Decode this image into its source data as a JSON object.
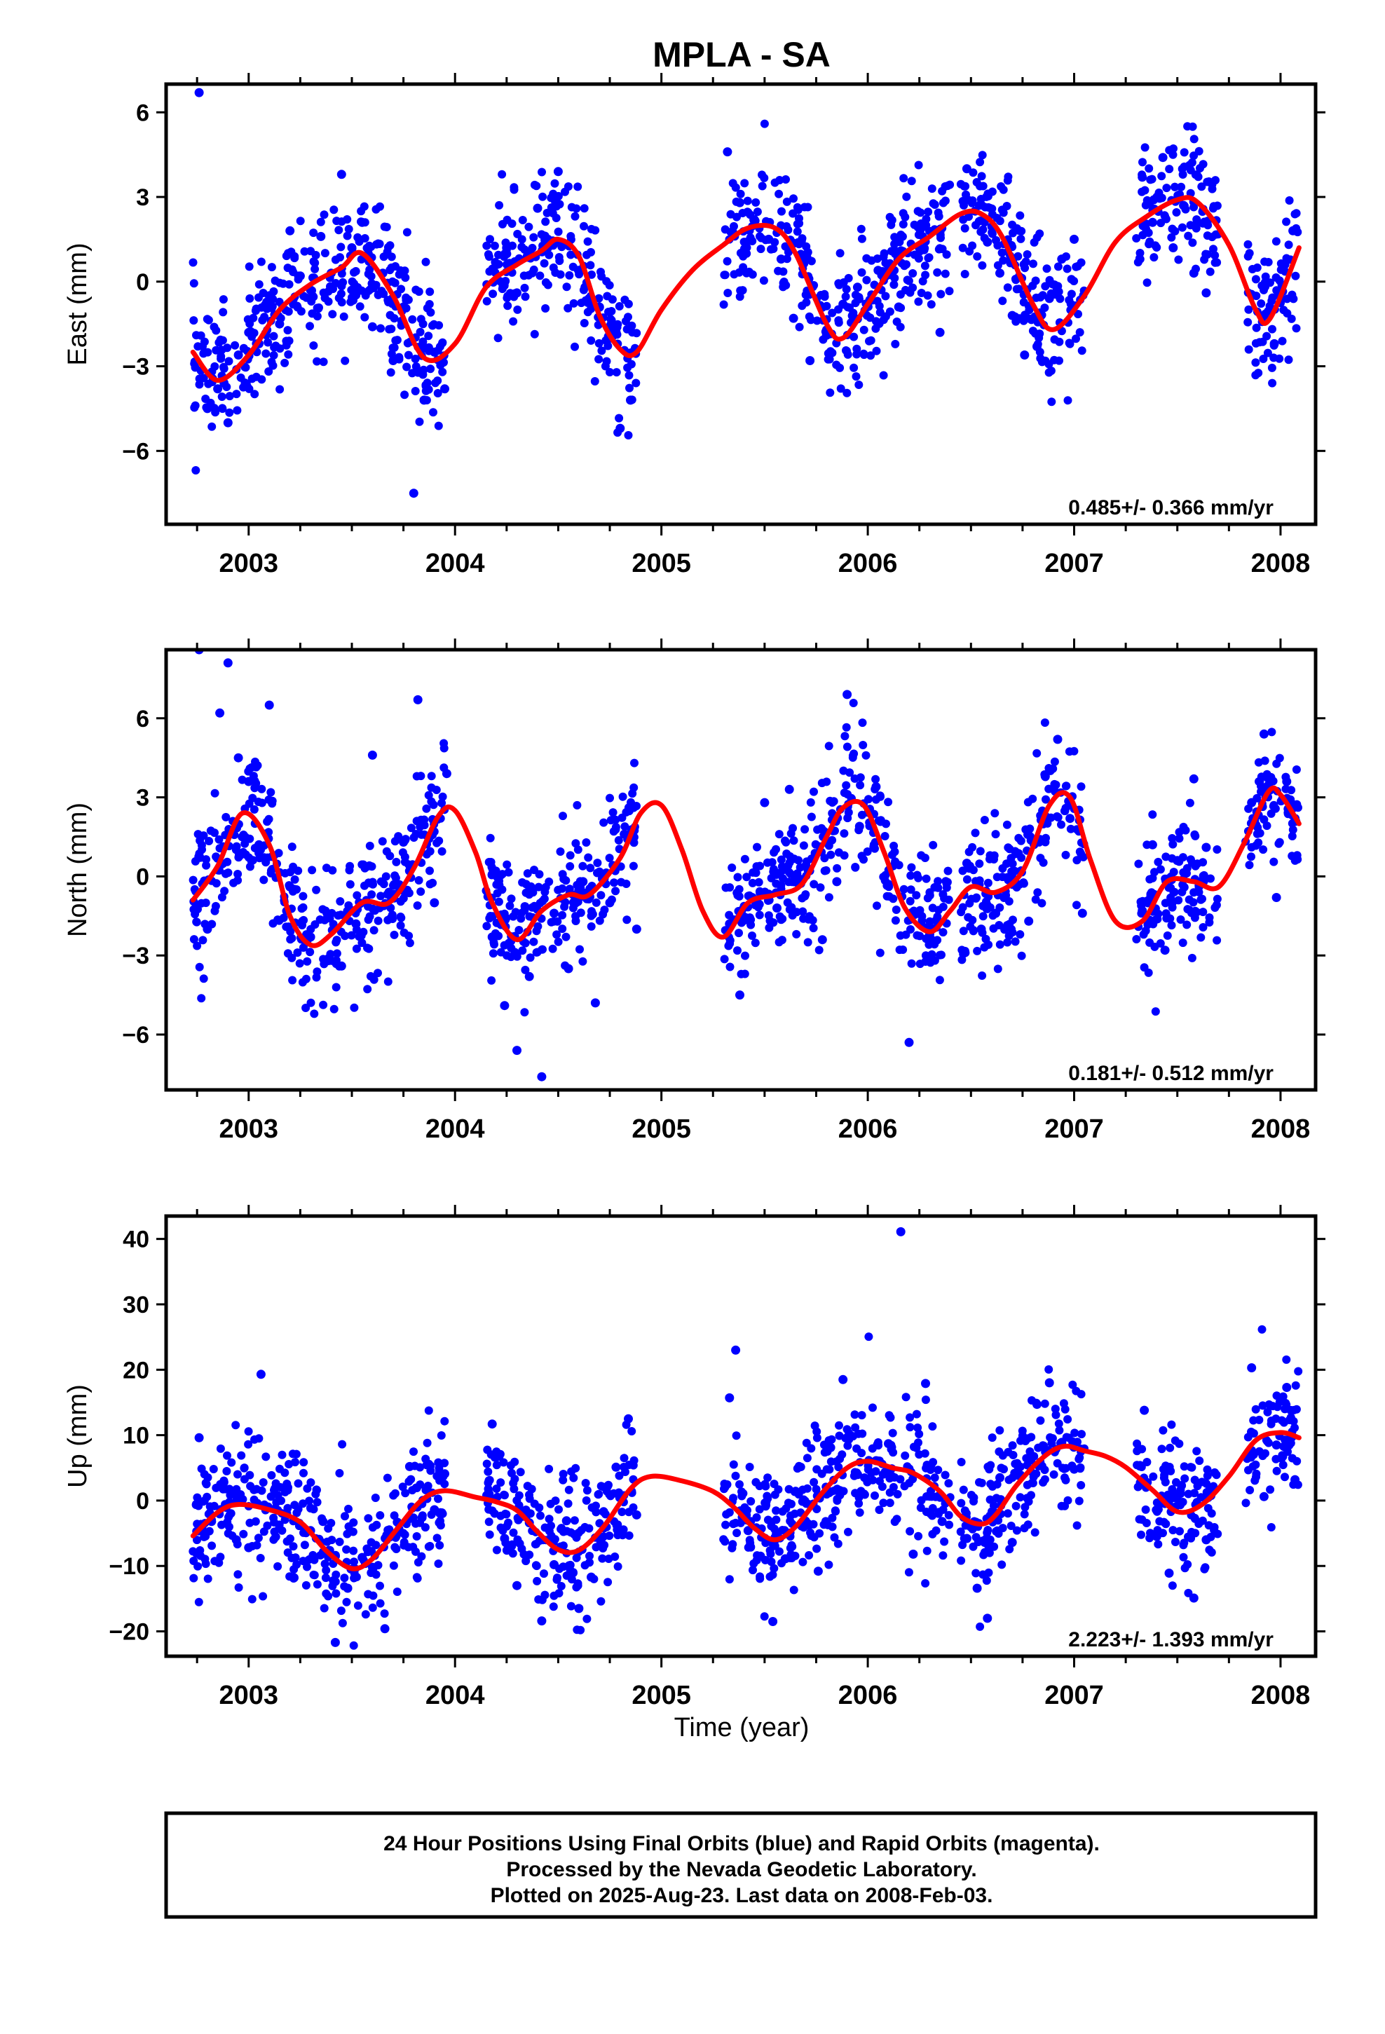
{
  "title": "MPLA - SA",
  "colors": {
    "points": "#0000ff",
    "fit": "#ff0000",
    "axis": "#000000"
  },
  "xlabel": "Time (year)",
  "footer": {
    "lines": [
      "24 Hour Positions Using Final Orbits (blue) and Rapid Orbits (magenta).",
      "Processed by the Nevada Geodetic Laboratory.",
      "Plotted on 2025-Aug-23. Last data on 2008-Feb-03."
    ]
  },
  "chart_data": [
    {
      "type": "scatter",
      "component": "east",
      "ylabel": "East (mm)",
      "rate": "0.485+/- 0.366 mm/yr",
      "xlim": [
        2002.6,
        2008.17
      ],
      "ylim": [
        -8.6,
        7.0
      ],
      "yticks": [
        -6,
        -3,
        0,
        3,
        6
      ],
      "yticklabels": [
        "−6",
        "−3",
        "0",
        "3",
        "6"
      ],
      "xticks": [
        2003,
        2004,
        2005,
        2006,
        2007,
        2008
      ],
      "xticklabels": [
        "2003",
        "2004",
        "2005",
        "2006",
        "2007",
        "2008"
      ],
      "data_segments": [
        [
          2002.73,
          2003.95
        ],
        [
          2004.15,
          2004.88
        ],
        [
          2005.3,
          2006.4
        ],
        [
          2006.45,
          2007.05
        ],
        [
          2007.3,
          2007.7
        ],
        [
          2007.83,
          2008.09
        ]
      ],
      "series": [
        {
          "kind": "points",
          "description": "daily positions (approximate, sampled)",
          "x": [
            2002.76,
            2002.8,
            2002.85,
            2002.9,
            2002.95,
            2003.0,
            2003.05,
            2003.1,
            2003.15,
            2003.2,
            2003.25,
            2003.3,
            2003.35,
            2003.4,
            2003.45,
            2003.5,
            2003.55,
            2003.6,
            2003.65,
            2003.7,
            2003.75,
            2003.8,
            2003.85,
            2003.9,
            2003.95,
            2004.2,
            2004.25,
            2004.3,
            2004.35,
            2004.4,
            2004.45,
            2004.5,
            2004.55,
            2004.6,
            2004.65,
            2004.7,
            2004.75,
            2004.8,
            2004.85,
            2005.32,
            2005.38,
            2005.45,
            2005.52,
            2005.58,
            2005.64,
            2005.72,
            2005.8,
            2005.88,
            2005.95,
            2006.05,
            2006.15,
            2006.25,
            2006.35,
            2006.48,
            2006.52,
            2006.58,
            2006.64,
            2006.7,
            2006.76,
            2006.82,
            2006.88,
            2006.94,
            2007.0,
            2007.33,
            2007.38,
            2007.43,
            2007.48,
            2007.53,
            2007.58,
            2007.64,
            2007.86,
            2007.92,
            2007.97,
            2008.02,
            2008.06
          ],
          "y": [
            6.7,
            -4.5,
            -3.8,
            -5.0,
            -2.6,
            -1.8,
            -2.2,
            -0.5,
            -1.5,
            1.8,
            0.2,
            -0.3,
            1.6,
            0.3,
            3.8,
            1.2,
            2.1,
            -1.6,
            0.3,
            -2.8,
            -0.9,
            -7.5,
            -4.2,
            -2.5,
            -3.8,
            0.6,
            1.2,
            -0.4,
            0.9,
            2.6,
            1.5,
            3.9,
            1.3,
            0.4,
            -0.6,
            -0.9,
            -1.8,
            -5.2,
            -4.2,
            4.6,
            2.8,
            2.2,
            1.5,
            0.8,
            -1.3,
            -2.8,
            -1.9,
            -0.8,
            -0.2,
            0.4,
            -0.9,
            1.2,
            -1.8,
            4.0,
            2.5,
            1.4,
            0.3,
            -1.2,
            -2.6,
            -2.3,
            -0.6,
            0.8,
            1.5,
            3.7,
            2.1,
            4.4,
            1.2,
            2.7,
            0.3,
            -0.4,
            -0.5,
            -1.2,
            -2.2,
            0.6,
            1.8
          ]
        },
        {
          "kind": "fit",
          "x": [
            2002.73,
            2002.85,
            2003.0,
            2003.15,
            2003.3,
            2003.45,
            2003.55,
            2003.7,
            2003.85,
            2004.0,
            2004.15,
            2004.3,
            2004.42,
            2004.5,
            2004.6,
            2004.7,
            2004.8,
            2004.88,
            2005.0,
            2005.15,
            2005.3,
            2005.42,
            2005.55,
            2005.65,
            2005.8,
            2005.88,
            2006.0,
            2006.15,
            2006.3,
            2006.45,
            2006.55,
            2006.65,
            2006.8,
            2006.9,
            2007.05,
            2007.2,
            2007.35,
            2007.5,
            2007.6,
            2007.75,
            2007.88,
            2007.95,
            2008.09
          ],
          "y": [
            -2.5,
            -3.5,
            -2.6,
            -1.0,
            -0.1,
            0.5,
            1.0,
            -0.5,
            -2.7,
            -2.2,
            -0.2,
            0.6,
            1.1,
            1.5,
            0.9,
            -1.2,
            -2.4,
            -2.5,
            -1.0,
            0.4,
            1.3,
            1.9,
            1.9,
            1.0,
            -1.5,
            -2.0,
            -0.8,
            0.8,
            1.6,
            2.4,
            2.4,
            1.6,
            -0.8,
            -1.7,
            -0.5,
            1.4,
            2.3,
            2.9,
            2.8,
            1.3,
            -1.0,
            -1.3,
            1.2
          ]
        }
      ]
    },
    {
      "type": "scatter",
      "component": "north",
      "ylabel": "North (mm)",
      "rate": "0.181+/- 0.512 mm/yr",
      "xlim": [
        2002.6,
        2008.17
      ],
      "ylim": [
        -8.1,
        8.6
      ],
      "yticks": [
        -6,
        -3,
        0,
        3,
        6
      ],
      "yticklabels": [
        "−6",
        "−3",
        "0",
        "3",
        "6"
      ],
      "xticks": [
        2003,
        2004,
        2005,
        2006,
        2007,
        2008
      ],
      "xticklabels": [
        "2003",
        "2004",
        "2005",
        "2006",
        "2007",
        "2008"
      ],
      "data_segments": [
        [
          2002.73,
          2003.95
        ],
        [
          2004.15,
          2004.88
        ],
        [
          2005.3,
          2006.4
        ],
        [
          2006.45,
          2007.05
        ],
        [
          2007.3,
          2007.7
        ],
        [
          2007.83,
          2008.09
        ]
      ],
      "series": [
        {
          "kind": "points",
          "description": "daily positions (approximate, sampled)",
          "x": [
            2002.76,
            2002.8,
            2002.86,
            2002.9,
            2002.95,
            2003.0,
            2003.05,
            2003.1,
            2003.2,
            2003.3,
            2003.38,
            2003.45,
            2003.52,
            2003.6,
            2003.68,
            2003.75,
            2003.82,
            2003.9,
            2003.96,
            2004.18,
            2004.24,
            2004.3,
            2004.36,
            2004.42,
            2004.48,
            2004.55,
            2004.62,
            2004.68,
            2004.75,
            2004.82,
            2004.88,
            2005.33,
            2005.38,
            2005.44,
            2005.5,
            2005.56,
            2005.62,
            2005.7,
            2005.78,
            2005.85,
            2005.9,
            2005.96,
            2006.04,
            2006.1,
            2006.2,
            2006.3,
            2006.48,
            2006.55,
            2006.62,
            2006.7,
            2006.78,
            2006.86,
            2006.92,
            2006.98,
            2007.04,
            2007.33,
            2007.38,
            2007.44,
            2007.5,
            2007.58,
            2007.64,
            2007.86,
            2007.92,
            2007.98,
            2008.03,
            2008.07
          ],
          "y": [
            8.6,
            -2.0,
            6.2,
            8.1,
            4.5,
            3.6,
            1.2,
            6.5,
            -0.4,
            -2.3,
            -1.4,
            -3.4,
            -1.8,
            4.6,
            -0.6,
            1.3,
            6.7,
            -1.0,
            3.9,
            -2.3,
            -4.9,
            -6.6,
            -3.8,
            -7.6,
            -1.4,
            -3.5,
            -0.2,
            -4.8,
            -1.0,
            1.6,
            -2.0,
            -1.8,
            -4.5,
            -0.8,
            2.8,
            -1.2,
            3.3,
            0.4,
            -2.4,
            -0.2,
            6.9,
            1.9,
            3.4,
            -0.3,
            -6.3,
            -2.2,
            0.5,
            -2.0,
            -1.4,
            -0.3,
            -1.7,
            3.8,
            5.2,
            2.2,
            -1.4,
            -1.3,
            1.2,
            -2.8,
            0.6,
            3.7,
            1.1,
            2.8,
            5.4,
            -0.8,
            3.6,
            2.2
          ]
        },
        {
          "kind": "fit",
          "x": [
            2002.73,
            2002.85,
            2002.97,
            2003.1,
            2003.2,
            2003.3,
            2003.4,
            2003.55,
            2003.68,
            2003.8,
            2003.92,
            2004.0,
            2004.1,
            2004.18,
            2004.3,
            2004.42,
            2004.55,
            2004.65,
            2004.8,
            2004.9,
            2005.0,
            2005.1,
            2005.2,
            2005.3,
            2005.42,
            2005.55,
            2005.68,
            2005.8,
            2005.88,
            2005.98,
            2006.08,
            2006.18,
            2006.3,
            2006.4,
            2006.5,
            2006.62,
            2006.75,
            2006.88,
            2006.98,
            2007.08,
            2007.2,
            2007.33,
            2007.45,
            2007.58,
            2007.7,
            2007.82,
            2007.94,
            2008.0,
            2008.09
          ],
          "y": [
            -0.9,
            0.4,
            2.4,
            1.2,
            -1.5,
            -2.6,
            -2.2,
            -1.0,
            -1.0,
            0.3,
            2.3,
            2.5,
            0.9,
            -1.0,
            -2.4,
            -1.3,
            -0.7,
            -0.7,
            0.7,
            2.4,
            2.7,
            1.0,
            -1.3,
            -2.3,
            -1.0,
            -0.7,
            -0.3,
            1.5,
            2.6,
            2.7,
            0.9,
            -1.2,
            -2.1,
            -1.3,
            -0.4,
            -0.6,
            0.2,
            2.7,
            3.0,
            0.6,
            -1.7,
            -1.7,
            -0.2,
            -0.2,
            -0.4,
            1.2,
            3.2,
            3.1,
            2.0
          ]
        }
      ]
    },
    {
      "type": "scatter",
      "component": "up",
      "ylabel": "Up (mm)",
      "rate": "2.223+/- 1.393 mm/yr",
      "xlim": [
        2002.6,
        2008.17
      ],
      "ylim": [
        -23.8,
        43.5
      ],
      "yticks": [
        -20,
        -10,
        0,
        10,
        20,
        30,
        40
      ],
      "yticklabels": [
        "−20",
        "−10",
        "0",
        "10",
        "20",
        "30",
        "40"
      ],
      "xticks": [
        2003,
        2004,
        2005,
        2006,
        2007,
        2008
      ],
      "xticklabels": [
        "2003",
        "2004",
        "2005",
        "2006",
        "2007",
        "2008"
      ],
      "data_segments": [
        [
          2002.73,
          2003.95
        ],
        [
          2004.15,
          2004.88
        ],
        [
          2005.3,
          2006.4
        ],
        [
          2006.45,
          2007.05
        ],
        [
          2007.3,
          2007.7
        ],
        [
          2007.83,
          2008.09
        ]
      ],
      "series": [
        {
          "kind": "points",
          "description": "daily positions (approximate, sampled)",
          "x": [
            2002.76,
            2002.82,
            2002.88,
            2002.94,
            2003.0,
            2003.06,
            2003.14,
            2003.22,
            2003.3,
            2003.36,
            2003.42,
            2003.48,
            2003.55,
            2003.6,
            2003.66,
            2003.72,
            2003.78,
            2003.84,
            2003.9,
            2003.95,
            2004.18,
            2004.24,
            2004.3,
            2004.36,
            2004.42,
            2004.48,
            2004.54,
            2004.6,
            2004.66,
            2004.72,
            2004.78,
            2004.84,
            2004.88,
            2005.33,
            2005.36,
            2005.42,
            2005.48,
            2005.54,
            2005.6,
            2005.68,
            2005.76,
            2005.82,
            2005.88,
            2005.95,
            2006.04,
            2006.1,
            2006.16,
            2006.22,
            2006.28,
            2006.36,
            2006.48,
            2006.53,
            2006.58,
            2006.64,
            2006.7,
            2006.76,
            2006.82,
            2006.88,
            2006.94,
            2007.0,
            2007.34,
            2007.4,
            2007.46,
            2007.52,
            2007.58,
            2007.64,
            2007.86,
            2007.92,
            2007.98,
            2008.03,
            2008.07
          ],
          "y": [
            9.6,
            -3.2,
            2.8,
            -6.0,
            -7.2,
            19.3,
            -1.5,
            -11.8,
            -4.6,
            -3.2,
            -21.7,
            -13.4,
            -8.7,
            -10.2,
            -19.6,
            -3.3,
            5.2,
            -2.6,
            -1.4,
            4.1,
            11.7,
            -5.8,
            -13.0,
            -3.4,
            -18.4,
            -9.8,
            -3.1,
            -16.5,
            -11.7,
            -1.7,
            5.1,
            12.5,
            -2.2,
            15.7,
            23.0,
            -4.6,
            -8.5,
            -18.5,
            -8.9,
            -3.9,
            -10.8,
            8.1,
            18.5,
            4.0,
            6.1,
            8.7,
            41.1,
            -8.2,
            17.9,
            -3.2,
            -5.8,
            -13.4,
            -18.0,
            3.5,
            -6.4,
            9.4,
            14.7,
            18.0,
            8.9,
            4.8,
            13.8,
            -5.5,
            -11.1,
            2.3,
            -14.9,
            -6.0,
            20.3,
            0.6,
            8.5,
            17.3,
            3.2
          ]
        },
        {
          "kind": "fit",
          "x": [
            2002.73,
            2002.85,
            2002.95,
            2003.1,
            2003.25,
            2003.38,
            2003.5,
            2003.6,
            2003.72,
            2003.84,
            2003.95,
            2004.1,
            2004.2,
            2004.3,
            2004.4,
            2004.5,
            2004.6,
            2004.72,
            2004.85,
            2004.95,
            2005.1,
            2005.25,
            2005.35,
            2005.45,
            2005.55,
            2005.65,
            2005.78,
            2005.9,
            2006.0,
            2006.12,
            2006.22,
            2006.35,
            2006.45,
            2006.55,
            2006.62,
            2006.72,
            2006.85,
            2006.95,
            2007.05,
            2007.15,
            2007.25,
            2007.38,
            2007.5,
            2007.62,
            2007.75,
            2007.88,
            2008.0,
            2008.09
          ],
          "y": [
            -5.4,
            -1.8,
            -0.6,
            -1.4,
            -3.3,
            -7.8,
            -10.4,
            -8.9,
            -4.3,
            0.1,
            1.5,
            0.5,
            -0.2,
            -1.5,
            -4.8,
            -7.5,
            -7.6,
            -4.0,
            1.8,
            3.7,
            3.0,
            1.4,
            -1.0,
            -4.2,
            -6.0,
            -4.0,
            1.2,
            5.0,
            6.0,
            5.0,
            4.2,
            1.4,
            -2.4,
            -3.6,
            -2.2,
            2.3,
            6.6,
            8.3,
            7.6,
            6.8,
            5.1,
            1.6,
            -1.7,
            -0.6,
            3.7,
            9.2,
            10.4,
            9.6
          ]
        }
      ]
    }
  ]
}
